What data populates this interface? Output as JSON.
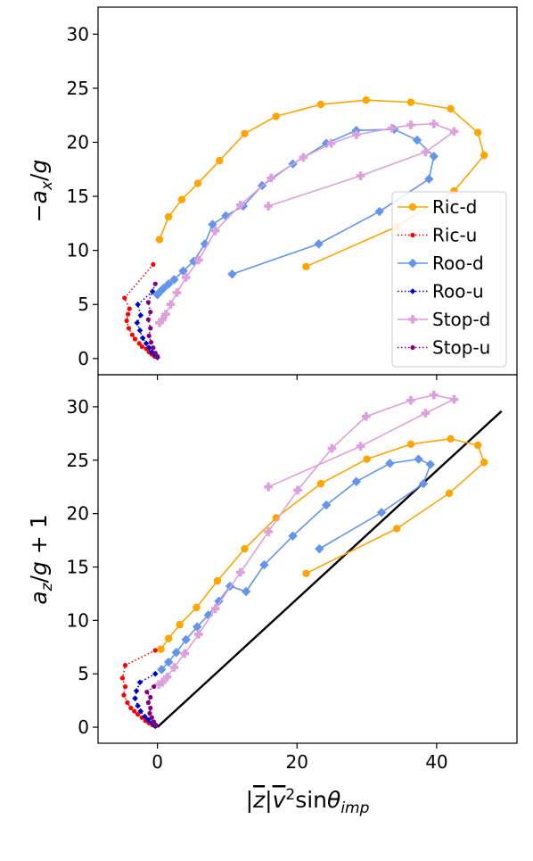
{
  "chart_data": [
    {
      "type": "line",
      "ylabel": "−a_x/g",
      "xlim": [
        -8.5,
        51.5
      ],
      "ylim": [
        -1.5,
        32.5
      ],
      "yticks": [
        0,
        5,
        10,
        15,
        20,
        25,
        30
      ],
      "legend": {
        "placement": "lower-right",
        "entries": [
          "Ric-d",
          "Ric-u",
          "Roo-d",
          "Roo-u",
          "Stop-d",
          "Stop-u"
        ]
      },
      "series": [
        {
          "name": "Ric-d",
          "color": "#ffa500",
          "marker": "circle",
          "line": "solid",
          "x": [
            21.3,
            34.3,
            42.5,
            46.8,
            45.9,
            42.0,
            36.3,
            29.9,
            23.4,
            17.0,
            12.5,
            8.9,
            5.8,
            3.5,
            1.6,
            0.3
          ],
          "y": [
            8.5,
            12.2,
            15.5,
            18.8,
            20.9,
            23.1,
            23.7,
            23.9,
            23.5,
            22.4,
            20.8,
            18.3,
            16.2,
            14.7,
            13.1,
            11.0
          ]
        },
        {
          "name": "Ric-u",
          "color": "#ff0000",
          "marker": "small-circle",
          "line": "dotted",
          "x": [
            -0.6,
            -4.7,
            -4.0,
            -4.2,
            -4.4,
            -4.1,
            -3.6,
            -3.2,
            -2.6,
            -2.2,
            -1.6,
            -1.2,
            -0.8,
            -0.4
          ],
          "y": [
            8.7,
            5.6,
            4.6,
            4.1,
            3.5,
            2.8,
            2.2,
            1.8,
            1.4,
            1.1,
            0.9,
            0.6,
            0.4,
            0.2
          ]
        },
        {
          "name": "Roo-d",
          "color": "#6495ed",
          "marker": "diamond",
          "line": "solid",
          "x": [
            10.7,
            23.1,
            31.8,
            38.9,
            39.6,
            37.2,
            33.9,
            28.5,
            24.2,
            19.4,
            15.0,
            12.3,
            9.8,
            7.9,
            6.8,
            5.2,
            3.7,
            2.4,
            1.6,
            0.9,
            0.4,
            0.0
          ],
          "y": [
            7.8,
            10.6,
            13.6,
            16.6,
            18.7,
            20.2,
            21.2,
            21.1,
            19.9,
            18.0,
            16.0,
            14.1,
            13.2,
            12.4,
            10.6,
            9.0,
            8.1,
            7.3,
            6.9,
            6.5,
            6.2,
            5.9
          ]
        },
        {
          "name": "Roo-u",
          "color": "#0000cd",
          "marker": "small-diamond",
          "line": "dotted",
          "x": [
            -0.7,
            -2.8,
            -2.4,
            -2.9,
            -2.5,
            -2.1,
            -1.6,
            -1.2,
            -0.8,
            -0.3,
            0.0
          ],
          "y": [
            6.2,
            5.0,
            4.0,
            3.3,
            2.6,
            1.9,
            1.4,
            1.0,
            0.6,
            0.3,
            0.1
          ]
        },
        {
          "name": "Stop-d",
          "color": "#dda0dd",
          "marker": "plus",
          "line": "solid",
          "x": [
            15.9,
            29.1,
            38.4,
            42.5,
            39.6,
            36.3,
            33.6,
            28.5,
            24.9,
            20.9,
            16.3,
            11.9,
            8.3,
            5.9,
            4.1,
            2.8,
            1.9,
            1.2,
            0.7,
            0.3
          ],
          "y": [
            14.1,
            16.9,
            19.1,
            21.0,
            21.7,
            21.6,
            21.3,
            20.7,
            19.9,
            18.6,
            16.7,
            14.2,
            11.8,
            9.1,
            7.5,
            6.1,
            5.0,
            4.1,
            3.6,
            3.3
          ]
        },
        {
          "name": "Stop-u",
          "color": "#800080",
          "marker": "small-circle",
          "line": "dotted",
          "x": [
            -0.3,
            -1.3,
            -1.0,
            -1.3,
            -1.0,
            -1.2,
            -0.9,
            -0.6,
            -0.3,
            0.0
          ],
          "y": [
            6.9,
            5.2,
            4.3,
            3.6,
            2.8,
            2.1,
            1.5,
            1.0,
            0.5,
            0.2
          ]
        }
      ]
    },
    {
      "type": "line",
      "ylabel": "a_z/g + 1",
      "xlabel": "|z̄|v̄²sinθ_imp",
      "xlim": [
        -8.5,
        51.5
      ],
      "ylim": [
        -1.5,
        33.0
      ],
      "xticks": [
        0,
        20,
        40
      ],
      "yticks": [
        0,
        5,
        10,
        15,
        20,
        25,
        30
      ],
      "series": [
        {
          "name": "Ric-d",
          "color": "#ffa500",
          "marker": "circle",
          "line": "solid",
          "x": [
            21.3,
            34.3,
            41.8,
            46.8,
            45.9,
            42.0,
            36.3,
            30.0,
            23.4,
            17.0,
            12.5,
            8.6,
            5.6,
            3.2,
            1.6,
            0.5
          ],
          "y": [
            14.4,
            18.6,
            21.9,
            24.8,
            26.4,
            27.0,
            26.5,
            25.1,
            22.8,
            19.6,
            16.7,
            13.7,
            11.2,
            9.6,
            8.3,
            7.3
          ]
        },
        {
          "name": "Ric-u",
          "color": "#ff0000",
          "marker": "small-circle",
          "line": "dotted",
          "x": [
            -0.3,
            -4.6,
            -5.0,
            -4.6,
            -4.8,
            -4.3,
            -3.8,
            -3.3,
            -2.8,
            -2.2,
            -1.7,
            -1.2,
            -0.7,
            -0.3
          ],
          "y": [
            7.2,
            5.8,
            4.6,
            3.8,
            3.0,
            2.3,
            1.8,
            1.5,
            1.2,
            0.9,
            0.6,
            0.4,
            0.2,
            0.1
          ]
        },
        {
          "name": "Roo-d",
          "color": "#6495ed",
          "marker": "diamond",
          "line": "solid",
          "x": [
            23.2,
            32.1,
            38.1,
            39.1,
            37.4,
            33.3,
            28.5,
            24.2,
            19.4,
            15.3,
            12.7,
            10.4,
            8.8,
            7.3,
            5.7,
            4.1,
            2.7,
            1.6,
            0.6
          ],
          "y": [
            16.7,
            20.1,
            22.8,
            24.6,
            25.1,
            24.7,
            23.0,
            20.8,
            17.9,
            15.2,
            12.7,
            13.2,
            11.8,
            10.5,
            9.4,
            8.2,
            7.0,
            6.1,
            5.4
          ]
        },
        {
          "name": "Roo-u",
          "color": "#0000cd",
          "marker": "small-diamond",
          "line": "dotted",
          "x": [
            -0.3,
            -2.5,
            -3.0,
            -3.2,
            -2.8,
            -2.4,
            -1.8,
            -1.3,
            -0.8,
            -0.3
          ],
          "y": [
            5.0,
            4.2,
            3.4,
            2.7,
            2.0,
            1.5,
            1.0,
            0.7,
            0.4,
            0.1
          ]
        },
        {
          "name": "Stop-d",
          "color": "#dda0dd",
          "marker": "plus",
          "line": "solid",
          "x": [
            15.9,
            29.1,
            38.4,
            42.5,
            39.6,
            36.3,
            29.9,
            25.0,
            20.1,
            15.9,
            11.9,
            8.3,
            5.9,
            3.9,
            2.4,
            1.4,
            0.7,
            0.2
          ],
          "y": [
            22.5,
            26.3,
            29.4,
            30.7,
            31.1,
            30.6,
            29.1,
            26.1,
            22.2,
            18.3,
            14.5,
            11.1,
            8.7,
            6.9,
            5.6,
            4.7,
            4.2,
            4.0
          ]
        },
        {
          "name": "Stop-u",
          "color": "#800080",
          "marker": "small-circle",
          "line": "dotted",
          "x": [
            -0.5,
            -1.5,
            -1.0,
            -1.3,
            -1.0,
            -1.1,
            -0.8,
            -0.5,
            -0.2
          ],
          "y": [
            3.8,
            3.3,
            2.8,
            2.3,
            1.8,
            1.3,
            0.9,
            0.5,
            0.2
          ]
        }
      ],
      "reference_line": {
        "color": "#000000",
        "x": [
          0,
          49.3
        ],
        "y": [
          0,
          29.6
        ]
      }
    }
  ]
}
